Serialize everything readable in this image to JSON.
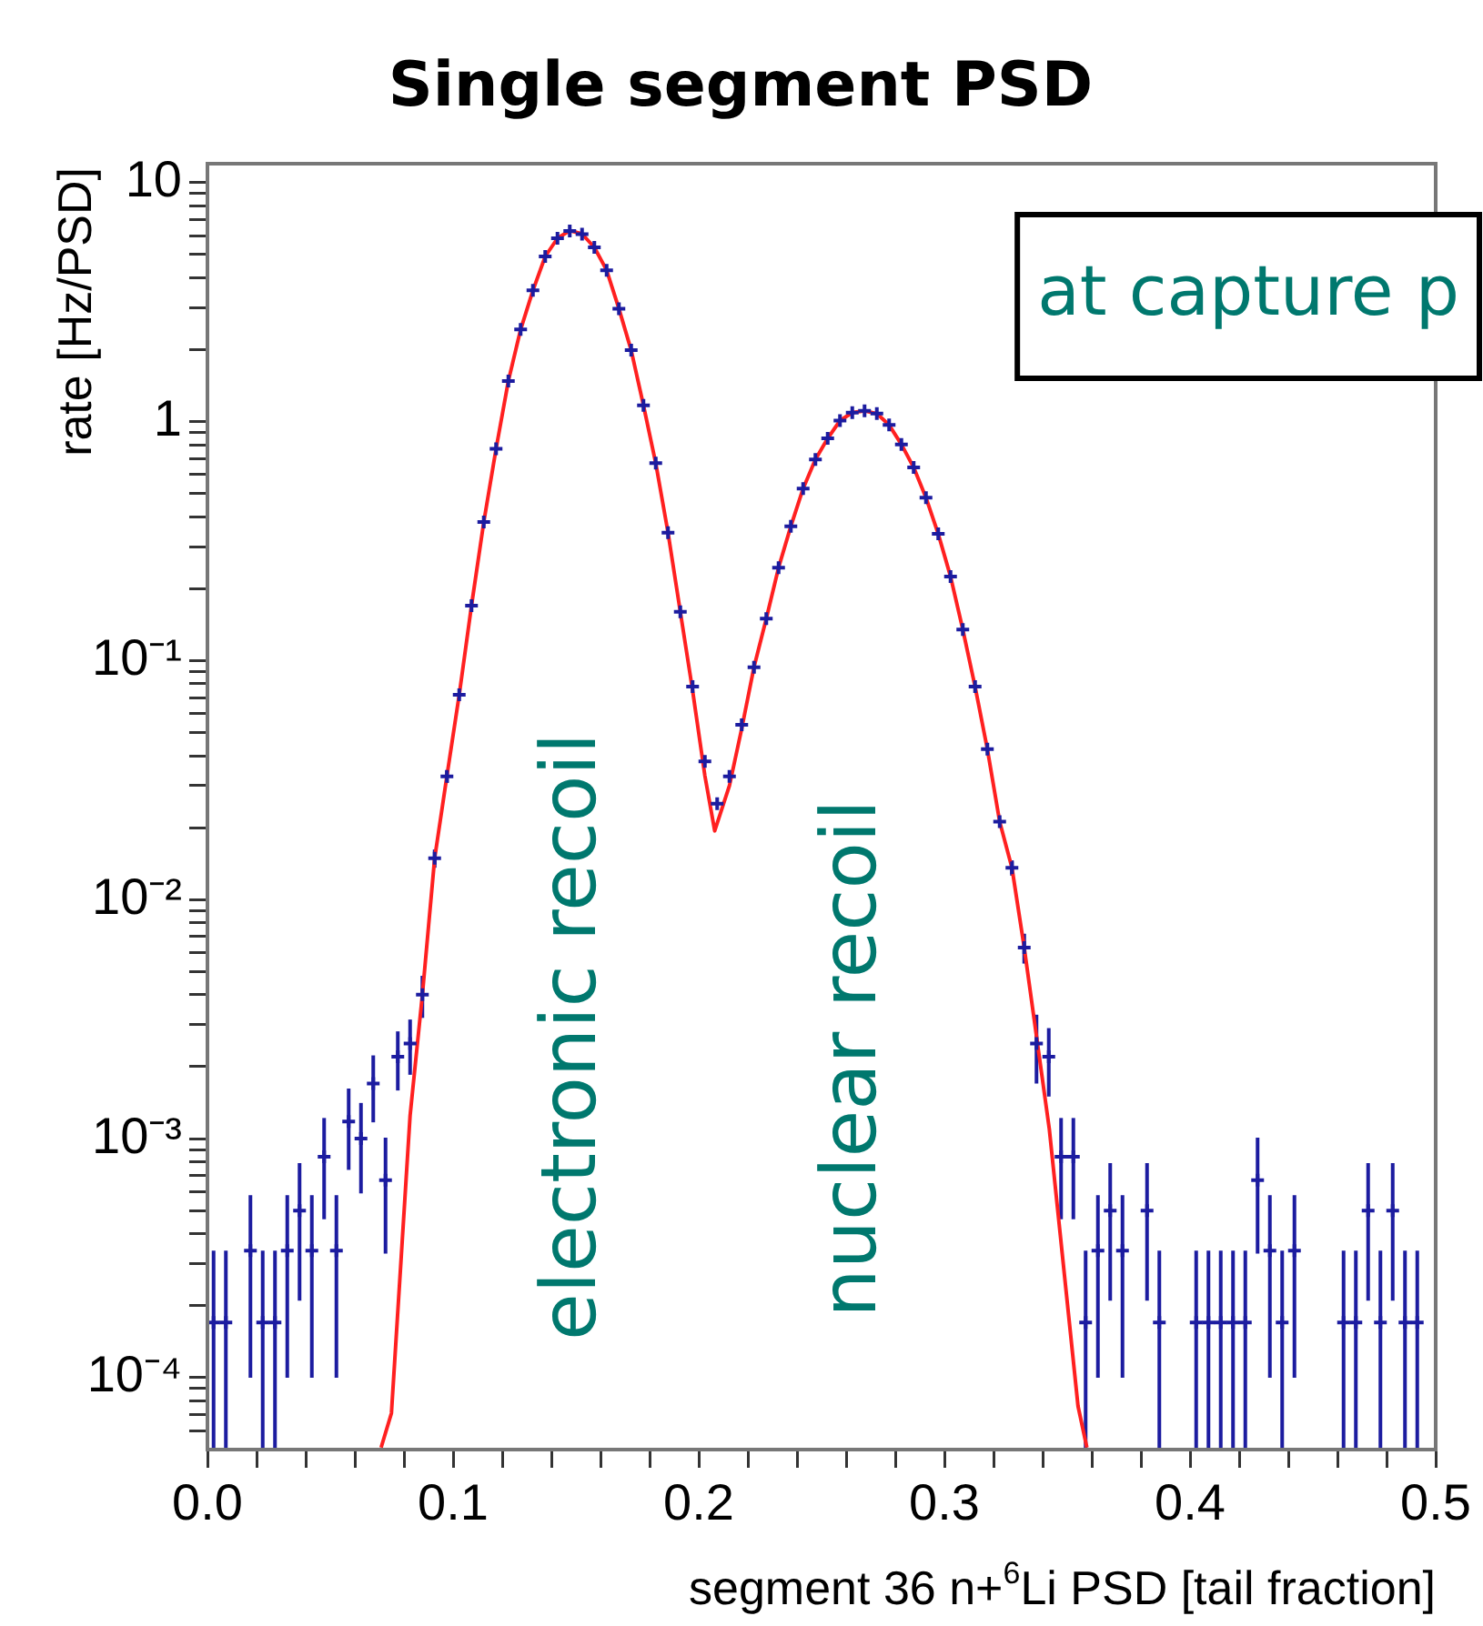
{
  "chart_data": {
    "type": "scatter",
    "title": "Single segment PSD",
    "xlabel": "segment 36 n+$^{6}$Li PSD [tail fraction]",
    "ylabel": "rate [Hz/PSD]",
    "xlim": [
      0,
      0.5
    ],
    "ylim": [
      5e-05,
      12
    ],
    "log": "y",
    "grid": false,
    "legend": false,
    "marker": "cross",
    "xticks": [
      {
        "value": 0,
        "label": "0.0"
      },
      {
        "value": 0.02,
        "label": null
      },
      {
        "value": 0.04,
        "label": null
      },
      {
        "value": 0.06,
        "label": null
      },
      {
        "value": 0.08,
        "label": null
      },
      {
        "value": 0.1,
        "label": "0.1"
      },
      {
        "value": 0.12,
        "label": null
      },
      {
        "value": 0.14,
        "label": null
      },
      {
        "value": 0.16,
        "label": null
      },
      {
        "value": 0.18,
        "label": null
      },
      {
        "value": 0.2,
        "label": "0.2"
      },
      {
        "value": 0.22,
        "label": null
      },
      {
        "value": 0.24,
        "label": null
      },
      {
        "value": 0.26,
        "label": null
      },
      {
        "value": 0.28,
        "label": null
      },
      {
        "value": 0.3,
        "label": "0.3"
      },
      {
        "value": 0.32,
        "label": null
      },
      {
        "value": 0.34,
        "label": null
      },
      {
        "value": 0.36,
        "label": null
      },
      {
        "value": 0.38,
        "label": null
      },
      {
        "value": 0.4,
        "label": "0.4"
      },
      {
        "value": 0.42,
        "label": null
      },
      {
        "value": 0.44,
        "label": null
      },
      {
        "value": 0.46,
        "label": null
      },
      {
        "value": 0.48,
        "label": null
      },
      {
        "value": 0.5,
        "label": "0.5"
      }
    ],
    "yticks": [
      {
        "value": 6e-05,
        "label": null
      },
      {
        "value": 7e-05,
        "label": null
      },
      {
        "value": 8e-05,
        "label": null
      },
      {
        "value": 9e-05,
        "label": null
      },
      {
        "value": 0.0001,
        "label": "10⁻⁴"
      },
      {
        "value": 0.0002,
        "label": null
      },
      {
        "value": 0.0003,
        "label": null
      },
      {
        "value": 0.0004,
        "label": null
      },
      {
        "value": 0.0005,
        "label": null
      },
      {
        "value": 0.0006,
        "label": null
      },
      {
        "value": 0.0007,
        "label": null
      },
      {
        "value": 0.0008,
        "label": null
      },
      {
        "value": 0.0009,
        "label": null
      },
      {
        "value": 0.001,
        "label": "10⁻³"
      },
      {
        "value": 0.002,
        "label": null
      },
      {
        "value": 0.003,
        "label": null
      },
      {
        "value": 0.004,
        "label": null
      },
      {
        "value": 0.005,
        "label": null
      },
      {
        "value": 0.006,
        "label": null
      },
      {
        "value": 0.007,
        "label": null
      },
      {
        "value": 0.008,
        "label": null
      },
      {
        "value": 0.009,
        "label": null
      },
      {
        "value": 0.01,
        "label": "10⁻²"
      },
      {
        "value": 0.02,
        "label": null
      },
      {
        "value": 0.03,
        "label": null
      },
      {
        "value": 0.04,
        "label": null
      },
      {
        "value": 0.05,
        "label": null
      },
      {
        "value": 0.06,
        "label": null
      },
      {
        "value": 0.07,
        "label": null
      },
      {
        "value": 0.08,
        "label": null
      },
      {
        "value": 0.09,
        "label": null
      },
      {
        "value": 0.1,
        "label": "10⁻¹"
      },
      {
        "value": 0.2,
        "label": null
      },
      {
        "value": 0.3,
        "label": null
      },
      {
        "value": 0.4,
        "label": null
      },
      {
        "value": 0.5,
        "label": null
      },
      {
        "value": 0.6,
        "label": null
      },
      {
        "value": 0.7,
        "label": null
      },
      {
        "value": 0.8,
        "label": null
      },
      {
        "value": 0.9,
        "label": null
      },
      1,
      {
        "value": 2,
        "label": null
      },
      {
        "value": 3,
        "label": null
      },
      {
        "value": 4,
        "label": null
      },
      {
        "value": 5,
        "label": null
      },
      {
        "value": 6,
        "label": null
      },
      {
        "value": 7,
        "label": null
      },
      {
        "value": 8,
        "label": null
      },
      {
        "value": 9,
        "label": null
      },
      10
    ],
    "annotations": [
      "electronic recoil",
      "nuclear recoil",
      "at capture p"
    ],
    "series": [
      {
        "color": "#1c1ca0",
        "x": [
          0.0025,
          0.0075,
          0.0175,
          0.0225,
          0.0275,
          0.0325,
          0.0375,
          0.0425,
          0.0475,
          0.0525,
          0.0575,
          0.0625,
          0.0675,
          0.0725,
          0.0775,
          0.0825,
          0.0875,
          0.0925,
          0.0975,
          0.1025,
          0.1075,
          0.1125,
          0.1175,
          0.1225,
          0.1275,
          0.1325,
          0.1375,
          0.1425,
          0.1475,
          0.1525,
          0.1575,
          0.1625,
          0.1675,
          0.1725,
          0.1775,
          0.1825,
          0.1875,
          0.1925,
          0.1975,
          0.2025,
          0.2075,
          0.2125,
          0.2175,
          0.2225,
          0.2275,
          0.2325,
          0.2375,
          0.2425,
          0.2475,
          0.2525,
          0.2575,
          0.2625,
          0.2675,
          0.2725,
          0.2775,
          0.2825,
          0.2875,
          0.2925,
          0.2975,
          0.3025,
          0.3075,
          0.3125,
          0.3175,
          0.3225,
          0.3275,
          0.3325,
          0.3375,
          0.3425,
          0.3475,
          0.3525,
          0.3575,
          0.3625,
          0.3675,
          0.3725,
          0.3825,
          0.3875,
          0.4025,
          0.4075,
          0.4125,
          0.4175,
          0.4225,
          0.4275,
          0.4325,
          0.4375,
          0.4425,
          0.4625,
          0.4675,
          0.4725,
          0.4775,
          0.4825,
          0.4875,
          0.4925
        ],
        "values": [
          0.00017,
          0.00017,
          0.00034,
          0.00017,
          0.00017,
          0.00034,
          0.0005,
          0.00034,
          0.00084,
          0.00034,
          0.00118,
          0.001,
          0.0017,
          0.00067,
          0.0022,
          0.0025,
          0.004,
          0.0149,
          0.0328,
          0.072,
          0.17,
          0.38,
          0.77,
          1.48,
          2.43,
          3.54,
          4.91,
          5.85,
          6.27,
          6.09,
          5.36,
          4.3,
          2.97,
          1.99,
          1.17,
          0.671,
          0.343,
          0.16,
          0.0778,
          0.0379,
          0.0252,
          0.0328,
          0.0539,
          0.0938,
          0.15,
          0.245,
          0.365,
          0.525,
          0.695,
          0.851,
          1.01,
          1.09,
          1.11,
          1.08,
          0.968,
          0.803,
          0.643,
          0.481,
          0.339,
          0.225,
          0.135,
          0.0778,
          0.0426,
          0.0212,
          0.0136,
          0.0063,
          0.0025,
          0.0022,
          0.00084,
          0.00084,
          0.00017,
          0.00034,
          0.0005,
          0.00034,
          0.0005,
          0.00017,
          0.00017,
          0.00017,
          0.00017,
          0.00017,
          0.00017,
          0.00067,
          0.00034,
          0.00017,
          0.00034,
          0.00017,
          0.00017,
          0.0005,
          0.00017,
          0.0005,
          0.00017,
          0.00017
        ],
        "errors": [
          [
            5e-05,
            0.00034
          ],
          [
            5e-05,
            0.00034
          ],
          0.00024,
          [
            5e-05,
            0.00034
          ],
          [
            5e-05,
            0.00034
          ],
          0.00024,
          0.00029,
          0.00024,
          0.00038,
          0.00024,
          0.00044,
          0.00041,
          0.00053,
          0.00034,
          0.00061,
          0.00065,
          0.0008,
          0.0013,
          0.002,
          null,
          null,
          null,
          null,
          null,
          null,
          null,
          null,
          null,
          null,
          null,
          null,
          null,
          null,
          null,
          null,
          null,
          null,
          null,
          null,
          null,
          null,
          null,
          null,
          null,
          null,
          null,
          null,
          null,
          null,
          null,
          null,
          null,
          null,
          null,
          null,
          null,
          null,
          null,
          null,
          null,
          null,
          null,
          null,
          null,
          0.001,
          0.0009,
          0.0008,
          0.0007,
          0.00038,
          0.00038,
          [
            5e-05,
            0.00034
          ],
          0.00024,
          0.00029,
          0.00024,
          0.00029,
          [
            5e-05,
            0.00034
          ],
          [
            5e-05,
            0.00034
          ],
          [
            5e-05,
            0.00034
          ],
          [
            5e-05,
            0.00034
          ],
          [
            5e-05,
            0.00034
          ],
          [
            5e-05,
            0.00034
          ],
          0.00034,
          0.00024,
          [
            5e-05,
            0.00034
          ],
          0.00024,
          [
            5e-05,
            0.00034
          ],
          [
            5e-05,
            0.00034
          ],
          0.00029,
          [
            5e-05,
            0.00034
          ],
          0.00029,
          [
            5e-05,
            0.00034
          ],
          [
            5e-05,
            0.00034
          ]
        ]
      },
      {
        "type": "line",
        "color": "#ff2020",
        "marker": "none",
        "line_style": "solid",
        "x": [
          0.0707,
          0.0749,
          0.0825,
          0.0875,
          0.0925,
          0.0975,
          0.1025,
          0.1075,
          0.1125,
          0.1175,
          0.1225,
          0.1275,
          0.1325,
          0.1375,
          0.1425,
          0.1475,
          0.1525,
          0.1575,
          0.1625,
          0.1675,
          0.1725,
          0.1775,
          0.1825,
          0.1875,
          0.1925,
          0.1975,
          0.2025,
          0.2065,
          0.2125,
          0.2175,
          0.2225,
          0.2275,
          0.2325,
          0.2375,
          0.2425,
          0.2475,
          0.2525,
          0.2575,
          0.2625,
          0.2675,
          0.2725,
          0.2775,
          0.2825,
          0.2875,
          0.2925,
          0.2975,
          0.3025,
          0.3075,
          0.3125,
          0.3175,
          0.3225,
          0.3275,
          0.3325,
          0.3427,
          0.3544,
          0.358
        ],
        "values": [
          5.1e-05,
          7.1e-05,
          0.00125,
          0.004,
          0.0149,
          0.033,
          0.072,
          0.17,
          0.38,
          0.77,
          1.48,
          2.43,
          3.54,
          4.91,
          5.85,
          6.3,
          6.1,
          5.36,
          4.3,
          2.97,
          1.99,
          1.17,
          0.67,
          0.343,
          0.16,
          0.075,
          0.033,
          0.0194,
          0.03,
          0.052,
          0.094,
          0.15,
          0.245,
          0.365,
          0.525,
          0.695,
          0.851,
          1.01,
          1.09,
          1.11,
          1.08,
          0.968,
          0.803,
          0.643,
          0.481,
          0.339,
          0.225,
          0.135,
          0.0778,
          0.0426,
          0.0212,
          0.0136,
          0.0063,
          0.0011,
          7.6e-05,
          5.1e-05
        ]
      }
    ]
  }
}
